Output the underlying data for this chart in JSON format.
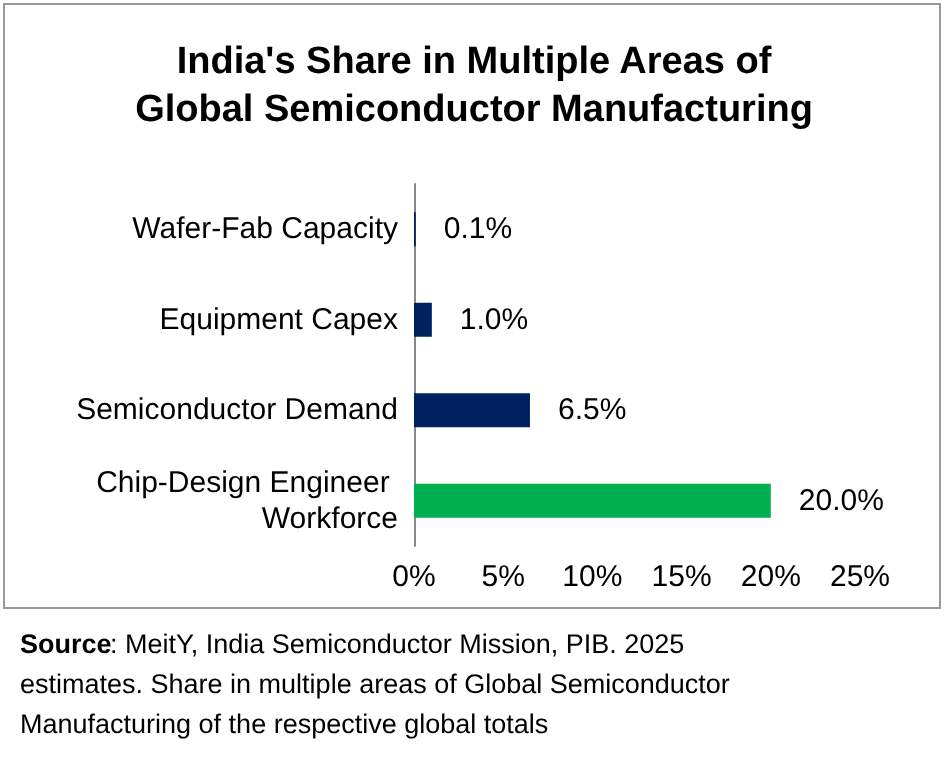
{
  "chart_data": {
    "type": "bar",
    "orientation": "horizontal",
    "title": "India's Share in Multiple Areas of\nGlobal Semiconductor Manufacturing",
    "categories": [
      "Wafer-Fab Capacity",
      "Equipment Capex",
      "Semiconductor Demand",
      "Chip-Design Engineer Workforce"
    ],
    "values": [
      0.1,
      1.0,
      6.5,
      20.0
    ],
    "colors": [
      "#002060",
      "#002060",
      "#002060",
      "#00b050"
    ],
    "value_labels": [
      "0.1%",
      "1.0%",
      "6.5%",
      "20.0%"
    ],
    "xlim": [
      0,
      25
    ],
    "xticks": [
      {
        "value": 0,
        "label": "0%"
      },
      {
        "value": 5,
        "label": "5%"
      },
      {
        "value": 10,
        "label": "10%"
      },
      {
        "value": 15,
        "label": "15%"
      },
      {
        "value": 20,
        "label": "20%"
      },
      {
        "value": 25,
        "label": "25%"
      }
    ],
    "grid": false,
    "annotations": [
      "Source: MeitY, India Semiconductor Mission, PIB. 2025 estimates. Share in multiple areas of Global Semiconductor Manufacturing of the respective global totals"
    ]
  }
}
